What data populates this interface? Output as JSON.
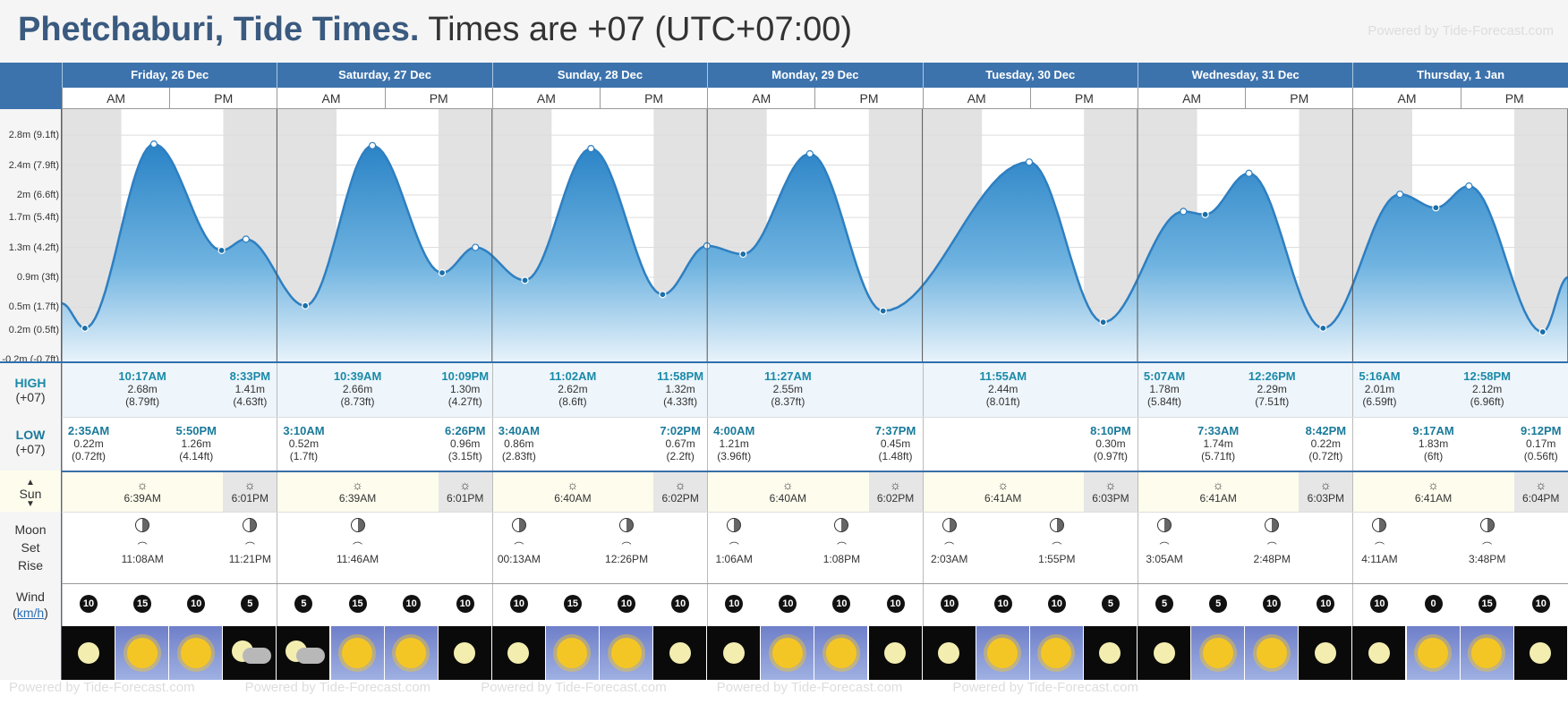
{
  "header": {
    "place": "Phetchaburi, Tide Times.",
    "tz_text": "Times are +07 (UTC+07:00)",
    "powered": "Powered by Tide-Forecast.com"
  },
  "days": [
    {
      "label": "Friday, 26 Dec"
    },
    {
      "label": "Saturday, 27 Dec"
    },
    {
      "label": "Sunday, 28 Dec"
    },
    {
      "label": "Monday, 29 Dec"
    },
    {
      "label": "Tuesday, 30 Dec"
    },
    {
      "label": "Wednesday, 31 Dec"
    },
    {
      "label": "Thursday, 1 Jan"
    }
  ],
  "ampm": {
    "am": "AM",
    "pm": "PM"
  },
  "row_labels": {
    "high": "HIGH",
    "high_tz": "(+07)",
    "low": "LOW",
    "low_tz": "(+07)",
    "sun": "Sun",
    "moon": "Moon",
    "set": "Set",
    "rise": "Rise",
    "wind": "Wind",
    "wind_unit": "km/h"
  },
  "y_axis": [
    "2.8m (9.1ft)",
    "2.4m (7.9ft)",
    "2m (6.6ft)",
    "1.7m (5.4ft)",
    "1.3m (4.2ft)",
    "0.9m (3ft)",
    "0.5m (1.7ft)",
    "0.2m (0.5ft)",
    "-0.2m (-0.7ft)"
  ],
  "tide_points": [
    {
      "day": 0,
      "h": 2.58,
      "v": 0.22,
      "kind": "low"
    },
    {
      "day": 0,
      "h": 10.28,
      "v": 2.68,
      "kind": "high"
    },
    {
      "day": 0,
      "h": 17.83,
      "v": 1.26,
      "kind": "low"
    },
    {
      "day": 0,
      "h": 20.55,
      "v": 1.41,
      "kind": "high"
    },
    {
      "day": 1,
      "h": 3.17,
      "v": 0.52,
      "kind": "low"
    },
    {
      "day": 1,
      "h": 10.65,
      "v": 2.66,
      "kind": "high"
    },
    {
      "day": 1,
      "h": 18.43,
      "v": 0.96,
      "kind": "low"
    },
    {
      "day": 1,
      "h": 22.15,
      "v": 1.3,
      "kind": "high"
    },
    {
      "day": 2,
      "h": 3.67,
      "v": 0.86,
      "kind": "low"
    },
    {
      "day": 2,
      "h": 11.03,
      "v": 2.62,
      "kind": "high"
    },
    {
      "day": 2,
      "h": 19.03,
      "v": 0.67,
      "kind": "low"
    },
    {
      "day": 2,
      "h": 23.97,
      "v": 1.32,
      "kind": "high"
    },
    {
      "day": 3,
      "h": 4.0,
      "v": 1.21,
      "kind": "low"
    },
    {
      "day": 3,
      "h": 11.45,
      "v": 2.55,
      "kind": "high"
    },
    {
      "day": 3,
      "h": 19.62,
      "v": 0.45,
      "kind": "low"
    },
    {
      "day": 4,
      "h": 11.92,
      "v": 2.44,
      "kind": "high"
    },
    {
      "day": 4,
      "h": 20.17,
      "v": 0.3,
      "kind": "low"
    },
    {
      "day": 5,
      "h": 5.12,
      "v": 1.78,
      "kind": "high"
    },
    {
      "day": 5,
      "h": 7.55,
      "v": 1.74,
      "kind": "low"
    },
    {
      "day": 5,
      "h": 12.43,
      "v": 2.29,
      "kind": "high"
    },
    {
      "day": 5,
      "h": 20.7,
      "v": 0.22,
      "kind": "low"
    },
    {
      "day": 6,
      "h": 5.27,
      "v": 2.01,
      "kind": "high"
    },
    {
      "day": 6,
      "h": 9.28,
      "v": 1.83,
      "kind": "low"
    },
    {
      "day": 6,
      "h": 12.97,
      "v": 2.12,
      "kind": "high"
    },
    {
      "day": 6,
      "h": 21.2,
      "v": 0.17,
      "kind": "low"
    }
  ],
  "highs": [
    {
      "col": 1,
      "time": "10:17AM",
      "m": "2.68m",
      "ft": "(8.79ft)"
    },
    {
      "col": 3,
      "time": "8:33PM",
      "m": "1.41m",
      "ft": "(4.63ft)"
    },
    {
      "col": 5,
      "time": "10:39AM",
      "m": "2.66m",
      "ft": "(8.73ft)"
    },
    {
      "col": 7,
      "time": "10:09PM",
      "m": "1.30m",
      "ft": "(4.27ft)"
    },
    {
      "col": 9,
      "time": "11:02AM",
      "m": "2.62m",
      "ft": "(8.6ft)"
    },
    {
      "col": 11,
      "time": "11:58PM",
      "m": "1.32m",
      "ft": "(4.33ft)"
    },
    {
      "col": 13,
      "time": "11:27AM",
      "m": "2.55m",
      "ft": "(8.37ft)"
    },
    {
      "col": 17,
      "time": "11:55AM",
      "m": "2.44m",
      "ft": "(8.01ft)"
    },
    {
      "col": 20,
      "time": "5:07AM",
      "m": "1.78m",
      "ft": "(5.84ft)"
    },
    {
      "col": 22,
      "time": "12:26PM",
      "m": "2.29m",
      "ft": "(7.51ft)"
    },
    {
      "col": 24,
      "time": "5:16AM",
      "m": "2.01m",
      "ft": "(6.59ft)"
    },
    {
      "col": 26,
      "time": "12:58PM",
      "m": "2.12m",
      "ft": "(6.96ft)"
    }
  ],
  "lows": [
    {
      "col": 0,
      "time": "2:35AM",
      "m": "0.22m",
      "ft": "(0.72ft)"
    },
    {
      "col": 2,
      "time": "5:50PM",
      "m": "1.26m",
      "ft": "(4.14ft)"
    },
    {
      "col": 4,
      "time": "3:10AM",
      "m": "0.52m",
      "ft": "(1.7ft)"
    },
    {
      "col": 7,
      "time": "6:26PM",
      "m": "0.96m",
      "ft": "(3.15ft)"
    },
    {
      "col": 8,
      "time": "3:40AM",
      "m": "0.86m",
      "ft": "(2.83ft)"
    },
    {
      "col": 11,
      "time": "7:02PM",
      "m": "0.67m",
      "ft": "(2.2ft)"
    },
    {
      "col": 12,
      "time": "4:00AM",
      "m": "1.21m",
      "ft": "(3.96ft)"
    },
    {
      "col": 15,
      "time": "7:37PM",
      "m": "0.45m",
      "ft": "(1.48ft)"
    },
    {
      "col": 19,
      "time": "8:10PM",
      "m": "0.30m",
      "ft": "(0.97ft)"
    },
    {
      "col": 21,
      "time": "7:33AM",
      "m": "1.74m",
      "ft": "(5.71ft)"
    },
    {
      "col": 23,
      "time": "8:42PM",
      "m": "0.22m",
      "ft": "(0.72ft)"
    },
    {
      "col": 25,
      "time": "9:17AM",
      "m": "1.83m",
      "ft": "(6ft)"
    },
    {
      "col": 27,
      "time": "9:12PM",
      "m": "0.17m",
      "ft": "(0.56ft)"
    }
  ],
  "sun": [
    {
      "col": 1,
      "time": "6:39AM"
    },
    {
      "col": 3,
      "time": "6:01PM"
    },
    {
      "col": 5,
      "time": "6:39AM"
    },
    {
      "col": 7,
      "time": "6:01PM"
    },
    {
      "col": 9,
      "time": "6:40AM"
    },
    {
      "col": 11,
      "time": "6:02PM"
    },
    {
      "col": 13,
      "time": "6:40AM"
    },
    {
      "col": 15,
      "time": "6:02PM"
    },
    {
      "col": 17,
      "time": "6:41AM"
    },
    {
      "col": 19,
      "time": "6:03PM"
    },
    {
      "col": 21,
      "time": "6:41AM"
    },
    {
      "col": 23,
      "time": "6:03PM"
    },
    {
      "col": 25,
      "time": "6:41AM"
    },
    {
      "col": 27,
      "time": "6:04PM"
    }
  ],
  "moon": [
    {
      "col": 1,
      "time": "11:08AM"
    },
    {
      "col": 3,
      "time": "11:21PM"
    },
    {
      "col": 5,
      "time": "11:46AM"
    },
    {
      "col": 8,
      "time": "00:13AM"
    },
    {
      "col": 10,
      "time": "12:26PM"
    },
    {
      "col": 12,
      "time": "1:06AM"
    },
    {
      "col": 14,
      "time": "1:08PM"
    },
    {
      "col": 16,
      "time": "2:03AM"
    },
    {
      "col": 18,
      "time": "1:55PM"
    },
    {
      "col": 20,
      "time": "3:05AM"
    },
    {
      "col": 22,
      "time": "2:48PM"
    },
    {
      "col": 24,
      "time": "4:11AM"
    },
    {
      "col": 26,
      "time": "3:48PM"
    }
  ],
  "wind": [
    "10",
    "15",
    "10",
    "5",
    "5",
    "15",
    "10",
    "10",
    "10",
    "15",
    "10",
    "10",
    "10",
    "10",
    "10",
    "10",
    "10",
    "10",
    "10",
    "5",
    "5",
    "5",
    "10",
    "10",
    "10",
    "0",
    "15",
    "10"
  ],
  "weather": [
    "night",
    "sun",
    "sun",
    "cloud",
    "cloud",
    "sun",
    "sun",
    "night",
    "night",
    "sun",
    "sun",
    "night",
    "night",
    "sun",
    "sun",
    "night",
    "night",
    "sun",
    "sun",
    "night",
    "night",
    "sun",
    "sun",
    "night",
    "night",
    "sun",
    "sun",
    "night"
  ],
  "colors": {
    "day_header": "#3d73ad",
    "tide_fill": "#2e86c8",
    "tide_line": "#2e7fc1",
    "night_band": "#e2e2e2"
  }
}
